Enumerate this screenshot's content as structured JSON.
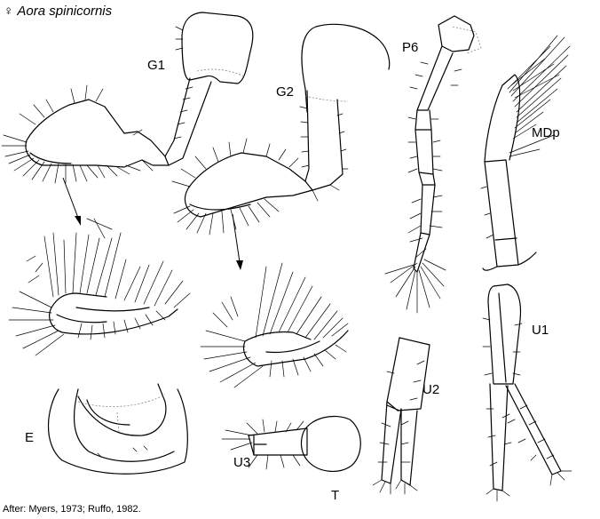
{
  "figure": {
    "title_symbol": "♀",
    "title_name": "Aora spinicornis",
    "credit": "After: Myers, 1973; Ruffo, 1982."
  },
  "labels": {
    "g1": "G1",
    "g2": "G2",
    "p6": "P6",
    "mdp": "MDp",
    "e": "E",
    "u3": "U3",
    "t": "T",
    "u2": "U2",
    "u1": "U1"
  }
}
